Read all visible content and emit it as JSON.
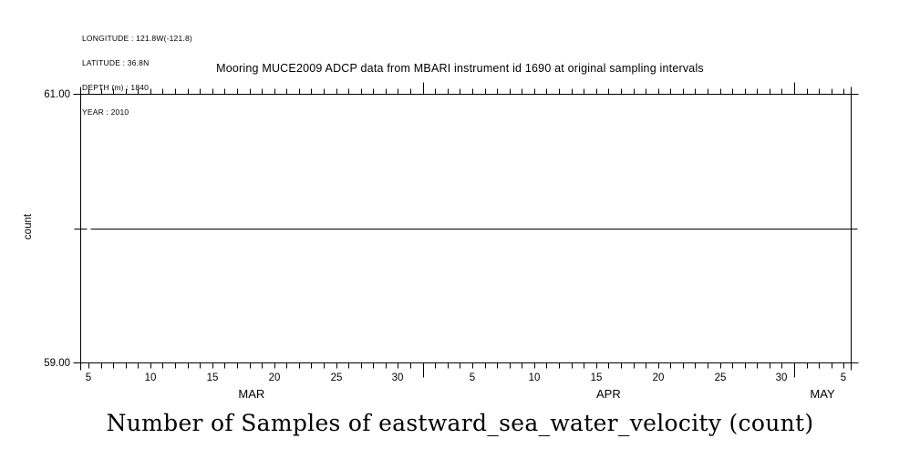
{
  "page": {
    "background": "#ffffff",
    "foreground": "#000000"
  },
  "metadata_block": {
    "lines": [
      "LONGITUDE : 121.8W(-121.8)",
      "LATITUDE : 36.8N",
      "DEPTH (m) : 1840",
      "YEAR : 2010"
    ]
  },
  "chart_data": {
    "type": "line",
    "title": "Mooring MUCE2009 ADCP data from MBARI instrument id 1690 at original sampling intervals",
    "bottom_title": "Number of Samples of eastward_sea_water_velocity (count)",
    "ylabel": "count",
    "ylim": [
      59.0,
      61.0
    ],
    "yticks": [
      {
        "value": 59.0,
        "label": "59.00"
      },
      {
        "value": 60.0,
        "label": ""
      },
      {
        "value": 61.0,
        "label": "61.00"
      }
    ],
    "x_axis": {
      "unit": "days (day 1 = Mar 1, 2010)",
      "range_days": [
        4.34,
        66.56
      ],
      "minor_tick_every_days": 1,
      "major_ticks": [
        {
          "day": 5,
          "label": "5"
        },
        {
          "day": 10,
          "label": "10"
        },
        {
          "day": 15,
          "label": "15"
        },
        {
          "day": 20,
          "label": "20"
        },
        {
          "day": 25,
          "label": "25"
        },
        {
          "day": 30,
          "label": "30"
        },
        {
          "day": 36,
          "label": "5"
        },
        {
          "day": 41,
          "label": "10"
        },
        {
          "day": 46,
          "label": "15"
        },
        {
          "day": 51,
          "label": "20"
        },
        {
          "day": 56,
          "label": "25"
        },
        {
          "day": 61,
          "label": "30"
        },
        {
          "day": 66,
          "label": "5"
        }
      ],
      "month_boundary_days": [
        32,
        62
      ],
      "months": [
        {
          "label": "MAR",
          "start_day": 1,
          "end_day": 32
        },
        {
          "label": "APR",
          "start_day": 32,
          "end_day": 62
        },
        {
          "label": "MAY",
          "start_day": 62,
          "end_day": 67
        }
      ]
    },
    "series": [
      {
        "name": "number_of_samples",
        "value": 60,
        "start_day": 5.2,
        "end_day": 66.56
      }
    ],
    "grid": false,
    "legend": false,
    "colors": {
      "background": "#ffffff",
      "axis": "#000000",
      "text": "#000000",
      "data_line": "#000000"
    }
  }
}
